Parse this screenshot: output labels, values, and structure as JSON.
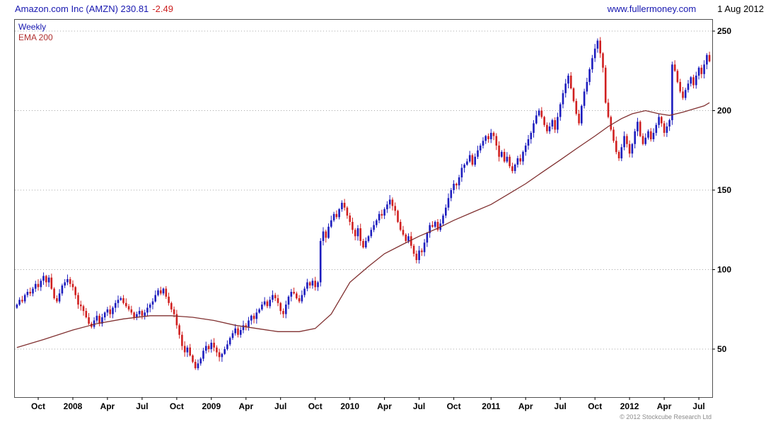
{
  "header": {
    "title": "Amazon.com Inc (AMZN) 230.81",
    "change": "-2.49",
    "website": "www.fullermoney.com",
    "date": "1 Aug 2012"
  },
  "legend": {
    "interval": "Weekly",
    "overlay": "EMA 200"
  },
  "footer": {
    "copyright": "© 2012 Stockcube Research Ltd"
  },
  "chart_data": {
    "type": "candlestick",
    "title": "Amazon.com Inc (AMZN) weekly candlestick chart with 200-period EMA",
    "instrument": "Amazon.com Inc (AMZN)",
    "last_price": 230.81,
    "change": -2.49,
    "interval": "Weekly",
    "overlay": "EMA 200",
    "ylim": [
      20,
      258
    ],
    "yticks": [
      50,
      100,
      150,
      200,
      250
    ],
    "x_ticks": [
      {
        "label": "Oct",
        "week": 8
      },
      {
        "label": "2008",
        "week": 21
      },
      {
        "label": "Apr",
        "week": 34
      },
      {
        "label": "Jul",
        "week": 47
      },
      {
        "label": "Oct",
        "week": 60
      },
      {
        "label": "2009",
        "week": 73
      },
      {
        "label": "Apr",
        "week": 86
      },
      {
        "label": "Jul",
        "week": 99
      },
      {
        "label": "Oct",
        "week": 112
      },
      {
        "label": "2010",
        "week": 125
      },
      {
        "label": "Apr",
        "week": 138
      },
      {
        "label": "Jul",
        "week": 151
      },
      {
        "label": "Oct",
        "week": 164
      },
      {
        "label": "2011",
        "week": 178
      },
      {
        "label": "Apr",
        "week": 191
      },
      {
        "label": "Jul",
        "week": 204
      },
      {
        "label": "Oct",
        "week": 217
      },
      {
        "label": "2012",
        "week": 230
      },
      {
        "label": "Apr",
        "week": 243
      },
      {
        "label": "Jul",
        "week": 256
      }
    ],
    "first_open": 76,
    "weekly_closes": [
      78,
      81,
      80,
      84,
      86,
      85,
      88,
      91,
      89,
      93,
      96,
      92,
      95,
      88,
      82,
      80,
      85,
      90,
      92,
      94,
      91,
      89,
      84,
      78,
      77,
      74,
      70,
      66,
      64,
      68,
      71,
      66,
      70,
      73,
      75,
      72,
      76,
      79,
      81,
      82,
      79,
      77,
      75,
      73,
      70,
      72,
      74,
      71,
      73,
      76,
      78,
      80,
      84,
      87,
      85,
      88,
      83,
      79,
      75,
      72,
      65,
      59,
      52,
      48,
      51,
      46,
      42,
      38,
      41,
      44,
      49,
      52,
      50,
      54,
      51,
      48,
      45,
      47,
      50,
      53,
      57,
      60,
      63,
      59,
      62,
      65,
      64,
      68,
      71,
      69,
      73,
      75,
      78,
      80,
      77,
      81,
      84,
      82,
      79,
      74,
      72,
      78,
      83,
      86,
      85,
      82,
      80,
      84,
      88,
      92,
      90,
      93,
      89,
      92,
      118,
      124,
      120,
      127,
      131,
      135,
      133,
      138,
      142,
      139,
      134,
      130,
      125,
      121,
      126,
      118,
      114,
      118,
      121,
      125,
      128,
      131,
      135,
      134,
      138,
      141,
      144,
      140,
      137,
      130,
      125,
      122,
      118,
      121,
      115,
      110,
      106,
      112,
      111,
      117,
      123,
      128,
      127,
      130,
      125,
      129,
      134,
      139,
      145,
      150,
      154,
      153,
      158,
      164,
      166,
      168,
      172,
      166,
      171,
      175,
      178,
      181,
      184,
      182,
      186,
      184,
      178,
      171,
      174,
      168,
      171,
      165,
      162,
      166,
      170,
      168,
      174,
      178,
      182,
      186,
      192,
      197,
      200,
      196,
      191,
      187,
      190,
      194,
      188,
      196,
      204,
      211,
      217,
      222,
      214,
      206,
      198,
      192,
      203,
      212,
      218,
      226,
      233,
      239,
      244,
      236,
      227,
      205,
      196,
      188,
      181,
      174,
      170,
      177,
      184,
      179,
      173,
      179,
      187,
      193,
      184,
      179,
      183,
      187,
      182,
      186,
      191,
      196,
      192,
      186,
      190,
      194,
      229,
      225,
      218,
      212,
      208,
      213,
      217,
      221,
      216,
      222,
      227,
      223,
      229,
      235,
      231
    ],
    "ema": {
      "label": "EMA 200",
      "points": [
        [
          0,
          51
        ],
        [
          10,
          56
        ],
        [
          21,
          62
        ],
        [
          30,
          66
        ],
        [
          40,
          69
        ],
        [
          50,
          71
        ],
        [
          58,
          71
        ],
        [
          66,
          70
        ],
        [
          74,
          68
        ],
        [
          82,
          65
        ],
        [
          90,
          63
        ],
        [
          98,
          61
        ],
        [
          106,
          61
        ],
        [
          112,
          63
        ],
        [
          118,
          72
        ],
        [
          125,
          92
        ],
        [
          132,
          102
        ],
        [
          138,
          110
        ],
        [
          145,
          116
        ],
        [
          151,
          121
        ],
        [
          158,
          126
        ],
        [
          164,
          131
        ],
        [
          171,
          136
        ],
        [
          178,
          141
        ],
        [
          184,
          147
        ],
        [
          191,
          154
        ],
        [
          197,
          161
        ],
        [
          204,
          169
        ],
        [
          210,
          176
        ],
        [
          217,
          184
        ],
        [
          222,
          190
        ],
        [
          227,
          195
        ],
        [
          231,
          198
        ],
        [
          236,
          200
        ],
        [
          241,
          198
        ],
        [
          245,
          197
        ],
        [
          250,
          199
        ],
        [
          254,
          201
        ],
        [
          258,
          203
        ],
        [
          260,
          205
        ]
      ]
    },
    "up_color": "#1d1dbe",
    "down_color": "#d02020",
    "ema_color": "#803030",
    "grid_color": "#a8a8a8",
    "legend_position": "top-left",
    "grid": "horizontal-dotted"
  }
}
